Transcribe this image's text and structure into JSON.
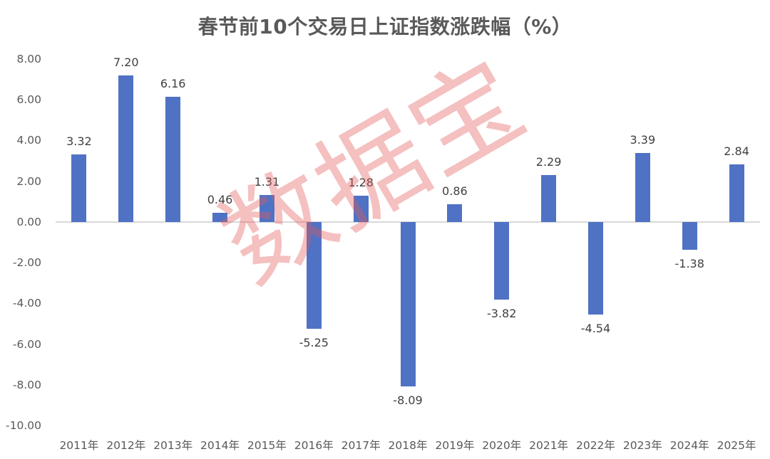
{
  "title": "春节前10个交易日上证指数涨跌幅（%）",
  "watermark": "数据宝",
  "colors": {
    "bar": "#4f72c4",
    "axis_text": "#595959",
    "baseline": "#d9d9d9",
    "watermark": "#e65a5a"
  },
  "y_axis": {
    "ticks": [
      "8.00",
      "6.00",
      "4.00",
      "2.00",
      "0.00",
      "-2.00",
      "-4.00",
      "-6.00",
      "-8.00",
      "-10.00"
    ]
  },
  "chart_data": {
    "type": "bar",
    "title": "春节前10个交易日上证指数涨跌幅（%）",
    "xlabel": "",
    "ylabel": "",
    "categories": [
      "2011年",
      "2012年",
      "2013年",
      "2014年",
      "2015年",
      "2016年",
      "2017年",
      "2018年",
      "2019年",
      "2020年",
      "2021年",
      "2022年",
      "2023年",
      "2024年",
      "2025年"
    ],
    "values": [
      3.32,
      7.2,
      6.16,
      0.46,
      1.31,
      -5.25,
      1.28,
      -8.09,
      0.86,
      -3.82,
      2.29,
      -4.54,
      3.39,
      -1.38,
      2.84
    ],
    "labels": [
      "3.32",
      "7.20",
      "6.16",
      "0.46",
      "1.31",
      "-5.25",
      "1.28",
      "-8.09",
      "0.86",
      "-3.82",
      "2.29",
      "-4.54",
      "3.39",
      "-1.38",
      "2.84"
    ],
    "ylim": [
      -10,
      8
    ],
    "yticks": [
      8,
      6,
      4,
      2,
      0,
      -2,
      -4,
      -6,
      -8,
      -10
    ],
    "grid": false,
    "legend": null,
    "series_color": "#4f72c4"
  }
}
